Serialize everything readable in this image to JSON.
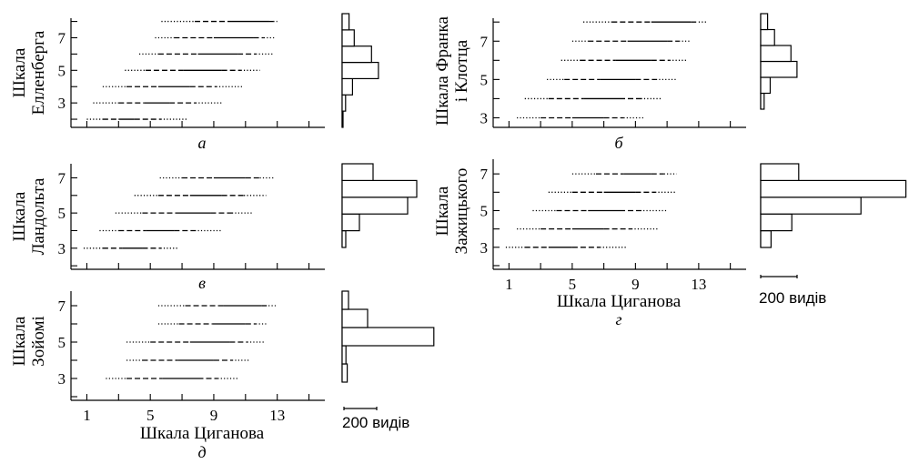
{
  "colors": {
    "ink": "#000000",
    "background": "#ffffff"
  },
  "x_tick_labels": [
    "1",
    "5",
    "9",
    "13"
  ],
  "x_axis_label": "Шкала Циганова",
  "scale_bar_label": "200 видів",
  "chart_data": [
    {
      "id": "a",
      "type": "range",
      "panel_label": "а",
      "ylabel": [
        "Шкала",
        "Елленберга"
      ],
      "yticks": [
        3,
        5,
        7
      ],
      "ylim": [
        1.5,
        8.2
      ],
      "xlim": [
        0,
        16
      ],
      "show_xticklabels": false,
      "rows": [
        {
          "y": 2,
          "seg": [
            1.0,
            2.0,
            4.0,
            7.3
          ]
        },
        {
          "y": 3,
          "seg": [
            1.4,
            3.0,
            6.2,
            9.5
          ]
        },
        {
          "y": 4,
          "seg": [
            2.0,
            3.5,
            7.5,
            10.8
          ]
        },
        {
          "y": 5,
          "seg": [
            3.4,
            4.7,
            9.5,
            11.9
          ]
        },
        {
          "y": 6,
          "seg": [
            4.3,
            5.5,
            10.5,
            12.8
          ]
        },
        {
          "y": 7,
          "seg": [
            5.3,
            6.5,
            11.5,
            12.8
          ]
        },
        {
          "y": 8,
          "seg": [
            5.7,
            7.8,
            12.5,
            13.0
          ]
        }
      ],
      "hist": [
        {
          "y": 2,
          "n": 5
        },
        {
          "y": 3,
          "n": 20
        },
        {
          "y": 4,
          "n": 60
        },
        {
          "y": 5,
          "n": 210
        },
        {
          "y": 6,
          "n": 170
        },
        {
          "y": 7,
          "n": 70
        },
        {
          "y": 8,
          "n": 40
        }
      ]
    },
    {
      "id": "b",
      "type": "range",
      "panel_label": "б",
      "ylabel": [
        "Шкала Франка",
        "і Клотца"
      ],
      "yticks": [
        3,
        5,
        7
      ],
      "ylim": [
        2.5,
        8.2
      ],
      "xlim": [
        0,
        16
      ],
      "show_xticklabels": false,
      "rows": [
        {
          "y": 3,
          "seg": [
            1.5,
            3.0,
            7.0,
            9.5
          ]
        },
        {
          "y": 4,
          "seg": [
            2.0,
            3.5,
            8.0,
            10.7
          ]
        },
        {
          "y": 5,
          "seg": [
            3.4,
            4.5,
            9.0,
            11.6
          ]
        },
        {
          "y": 6,
          "seg": [
            4.3,
            5.5,
            10.0,
            12.3
          ]
        },
        {
          "y": 7,
          "seg": [
            5.0,
            6.0,
            11.0,
            12.5
          ]
        },
        {
          "y": 8,
          "seg": [
            5.7,
            7.5,
            12.5,
            13.5
          ]
        }
      ],
      "hist": [
        {
          "y": 3,
          "n": 20
        },
        {
          "y": 4,
          "n": 55
        },
        {
          "y": 5,
          "n": 210
        },
        {
          "y": 6,
          "n": 175
        },
        {
          "y": 7,
          "n": 80
        },
        {
          "y": 8,
          "n": 40
        }
      ]
    },
    {
      "id": "c",
      "type": "range",
      "panel_label": "в",
      "ylabel": [
        "Шкала",
        "Ландольта"
      ],
      "yticks": [
        3,
        5,
        7
      ],
      "ylim": [
        1.8,
        7.8
      ],
      "xlim": [
        0,
        16
      ],
      "show_xticklabels": false,
      "rows": [
        {
          "y": 3,
          "seg": [
            0.8,
            2.0,
            4.5,
            6.8
          ]
        },
        {
          "y": 4,
          "seg": [
            1.8,
            3.0,
            6.5,
            9.5
          ]
        },
        {
          "y": 5,
          "seg": [
            2.8,
            4.5,
            8.8,
            11.5
          ]
        },
        {
          "y": 6,
          "seg": [
            4.0,
            5.5,
            9.5,
            12.3
          ]
        },
        {
          "y": 7,
          "seg": [
            5.6,
            7.0,
            11.0,
            12.8
          ]
        }
      ],
      "hist": [
        {
          "y": 3,
          "n": 20
        },
        {
          "y": 4,
          "n": 95
        },
        {
          "y": 5,
          "n": 360
        },
        {
          "y": 6,
          "n": 410
        },
        {
          "y": 7,
          "n": 170
        }
      ]
    },
    {
      "id": "d",
      "type": "range",
      "panel_label": "г",
      "ylabel": [
        "Шкала",
        "Зажицького"
      ],
      "yticks": [
        3,
        5,
        7
      ],
      "ylim": [
        1.8,
        7.8
      ],
      "xlim": [
        0,
        16
      ],
      "show_xticklabels": true,
      "rows": [
        {
          "y": 3,
          "seg": [
            0.8,
            2.0,
            5.0,
            8.5
          ]
        },
        {
          "y": 4,
          "seg": [
            1.5,
            3.0,
            7.0,
            10.5
          ]
        },
        {
          "y": 5,
          "seg": [
            2.5,
            4.0,
            8.0,
            11.0
          ]
        },
        {
          "y": 6,
          "seg": [
            3.5,
            5.0,
            9.0,
            11.5
          ]
        },
        {
          "y": 7,
          "seg": [
            5.0,
            6.5,
            10.0,
            11.6
          ]
        }
      ],
      "hist": [
        {
          "y": 3,
          "n": 30
        },
        {
          "y": 4,
          "n": 90
        },
        {
          "y": 5,
          "n": 290
        },
        {
          "y": 6,
          "n": 420
        },
        {
          "y": 7,
          "n": 110
        }
      ]
    },
    {
      "id": "e",
      "type": "range",
      "panel_label": "д",
      "ylabel": [
        "Шкала",
        "Зойомі"
      ],
      "yticks": [
        3,
        5,
        7
      ],
      "ylim": [
        1.8,
        7.8
      ],
      "xlim": [
        0,
        16
      ],
      "show_xticklabels": true,
      "rows": [
        {
          "y": 3,
          "seg": [
            2.2,
            3.5,
            8.0,
            10.5
          ]
        },
        {
          "y": 4,
          "seg": [
            3.5,
            4.5,
            9.0,
            11.3
          ]
        },
        {
          "y": 5,
          "seg": [
            3.5,
            5.0,
            10.0,
            12.2
          ]
        },
        {
          "y": 6,
          "seg": [
            5.5,
            6.8,
            11.0,
            12.3
          ]
        },
        {
          "y": 7,
          "seg": [
            5.5,
            7.2,
            12.0,
            12.9
          ]
        }
      ],
      "hist": [
        {
          "y": 3,
          "n": 20
        },
        {
          "y": 4,
          "n": 15
        },
        {
          "y": 5,
          "n": 360
        },
        {
          "y": 6,
          "n": 100
        },
        {
          "y": 7,
          "n": 25
        }
      ]
    }
  ]
}
